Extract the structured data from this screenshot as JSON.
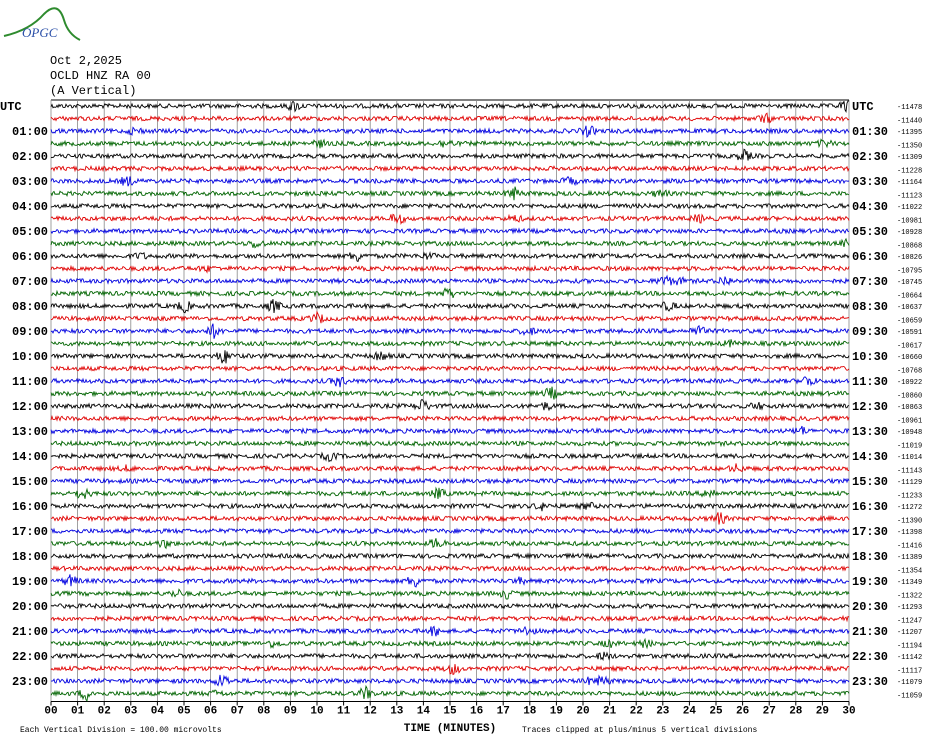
{
  "logo": {
    "text": "OPGC"
  },
  "header": {
    "date": "Oct 2,2025",
    "station": "OCLD HNZ RA 00",
    "component": "(A Vertical)"
  },
  "left_labels": [
    "UTC",
    "01:00",
    "02:00",
    "03:00",
    "04:00",
    "05:00",
    "06:00",
    "07:00",
    "08:00",
    "09:00",
    "10:00",
    "11:00",
    "12:00",
    "13:00",
    "14:00",
    "15:00",
    "16:00",
    "17:00",
    "18:00",
    "19:00",
    "20:00",
    "21:00",
    "22:00",
    "23:00"
  ],
  "right_labels": [
    "UTC",
    "01:30",
    "02:30",
    "03:30",
    "04:30",
    "05:30",
    "06:30",
    "07:30",
    "08:30",
    "09:30",
    "10:30",
    "11:30",
    "12:30",
    "13:30",
    "14:30",
    "15:30",
    "16:30",
    "17:30",
    "18:30",
    "19:30",
    "20:30",
    "21:30",
    "22:30",
    "23:30"
  ],
  "row_values": [
    -11478,
    -11440,
    -11395,
    -11350,
    -11309,
    -11228,
    -11164,
    -11123,
    -11022,
    -10981,
    -10928,
    -10868,
    -10826,
    -10795,
    -10745,
    -10664,
    -10637,
    -10659,
    -10591,
    -10617,
    -10660,
    -10768,
    -10922,
    -10860,
    -10863,
    -10961,
    -10948,
    -11019,
    -11014,
    -11143,
    -11129,
    -11233,
    -11272,
    -11390,
    -11398,
    -11416,
    -11389,
    -11354,
    -11349,
    -11322,
    -11293,
    -11247,
    -11207,
    -11194,
    -11142,
    -11117,
    -11079,
    -11059
  ],
  "x_ticks": [
    "00",
    "01",
    "02",
    "03",
    "04",
    "05",
    "06",
    "07",
    "08",
    "09",
    "10",
    "11",
    "12",
    "13",
    "14",
    "15",
    "16",
    "17",
    "18",
    "19",
    "20",
    "21",
    "22",
    "23",
    "24",
    "25",
    "26",
    "27",
    "28",
    "29",
    "30"
  ],
  "x_title": "TIME (MINUTES)",
  "footer": {
    "scale": "Each Vertical Division =  100.00 microvolts",
    "clip": "Traces clipped at plus/minus 5 vertical divisions"
  }
}
